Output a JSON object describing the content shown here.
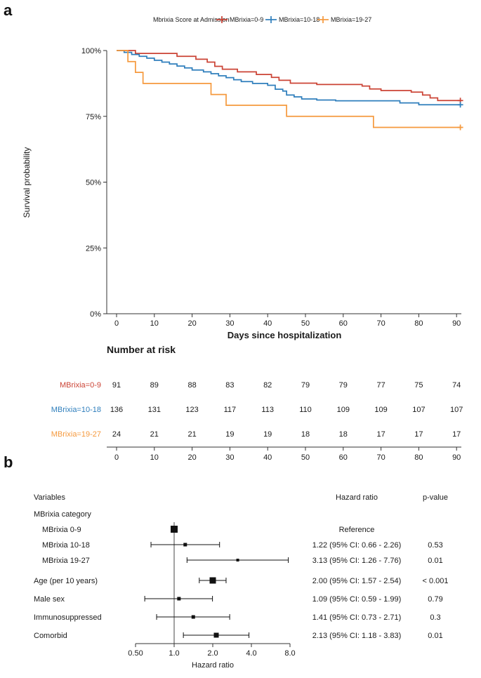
{
  "figure": {
    "panel_a_label": "a",
    "panel_b_label": "b"
  },
  "chart_data": [
    {
      "type": "line",
      "subtype": "kaplan-meier-step",
      "legend_title": "Mbrixia Score at Admission",
      "xlabel": "Days since hospitalization",
      "ylabel": "Survival probability",
      "xlim": [
        0,
        91
      ],
      "ylim": [
        0,
        100
      ],
      "xticks": [
        0,
        10,
        20,
        30,
        40,
        50,
        60,
        70,
        80,
        90
      ],
      "yticks": [
        100,
        75,
        50,
        25,
        0
      ],
      "ytick_labels": [
        "100%",
        "75%",
        "50%",
        "25%",
        "0%"
      ],
      "series": [
        {
          "name": "MBrixia=0-9",
          "color": "#cb4335",
          "steps": [
            [
              0,
              100
            ],
            [
              5,
              98.9
            ],
            [
              16,
              97.8
            ],
            [
              21,
              96.7
            ],
            [
              24,
              95.6
            ],
            [
              26,
              94.0
            ],
            [
              28,
              92.9
            ],
            [
              32,
              91.9
            ],
            [
              37,
              90.9
            ],
            [
              41,
              89.8
            ],
            [
              43,
              88.7
            ],
            [
              46,
              87.6
            ],
            [
              53,
              87.1
            ],
            [
              65,
              86.5
            ],
            [
              67,
              85.4
            ],
            [
              70,
              84.8
            ],
            [
              78,
              84.2
            ],
            [
              81,
              83.1
            ],
            [
              83,
              82.0
            ],
            [
              85,
              81.0
            ],
            [
              91,
              81.0
            ]
          ]
        },
        {
          "name": "MBrixia=10-18",
          "color": "#2e7ebc",
          "steps": [
            [
              0,
              100
            ],
            [
              2,
              99.3
            ],
            [
              4,
              98.5
            ],
            [
              6,
              97.8
            ],
            [
              8,
              97.1
            ],
            [
              10,
              96.3
            ],
            [
              12,
              95.6
            ],
            [
              14,
              94.9
            ],
            [
              16,
              94.1
            ],
            [
              18,
              93.4
            ],
            [
              20,
              92.6
            ],
            [
              23,
              91.9
            ],
            [
              25,
              91.2
            ],
            [
              27,
              90.4
            ],
            [
              29,
              89.7
            ],
            [
              31,
              88.9
            ],
            [
              33,
              88.2
            ],
            [
              36,
              87.5
            ],
            [
              40,
              86.8
            ],
            [
              42,
              85.3
            ],
            [
              44,
              84.6
            ],
            [
              45,
              83.1
            ],
            [
              47,
              82.4
            ],
            [
              49,
              81.6
            ],
            [
              53,
              81.2
            ],
            [
              58,
              80.9
            ],
            [
              75,
              80.1
            ],
            [
              80,
              79.4
            ],
            [
              91,
              79.4
            ]
          ]
        },
        {
          "name": "MBrixia=19-27",
          "color": "#f5993d",
          "steps": [
            [
              0,
              100
            ],
            [
              3,
              95.8
            ],
            [
              5,
              91.7
            ],
            [
              7,
              87.5
            ],
            [
              25,
              83.3
            ],
            [
              29,
              79.2
            ],
            [
              45,
              75.0
            ],
            [
              68,
              70.8
            ],
            [
              91,
              70.8
            ]
          ]
        }
      ],
      "risk_table": {
        "title": "Number at risk",
        "times": [
          0,
          10,
          20,
          30,
          40,
          50,
          60,
          70,
          80,
          90
        ],
        "rows": [
          {
            "name": "MBrixia=0-9",
            "color": "#cb4335",
            "counts": [
              91,
              89,
              88,
              83,
              82,
              79,
              79,
              77,
              75,
              74
            ]
          },
          {
            "name": "MBrixia=10-18",
            "color": "#2e7ebc",
            "counts": [
              136,
              131,
              123,
              117,
              113,
              110,
              109,
              109,
              107,
              107
            ]
          },
          {
            "name": "MBrixia=19-27",
            "color": "#f5993d",
            "counts": [
              24,
              21,
              21,
              19,
              19,
              18,
              18,
              17,
              17,
              17
            ]
          }
        ]
      }
    },
    {
      "type": "forest",
      "xlabel": "Hazard ratio",
      "xticks": [
        0.5,
        1.0,
        2.0,
        4.0,
        8.0
      ],
      "xtick_labels": [
        "0.50",
        "1.0",
        "2.0",
        "4.0",
        "8.0"
      ],
      "columns": {
        "variables": "Variables",
        "hazard_ratio": "Hazard ratio",
        "p_value": "p-value"
      },
      "rows": [
        {
          "label": "MBrixia category",
          "indent": 0,
          "hr": null,
          "ci": null,
          "hr_text": "",
          "p": "",
          "marker_size": 0
        },
        {
          "label": "MBrixia 0-9",
          "indent": 1,
          "hr": 1.0,
          "ci": null,
          "hr_text": "Reference",
          "p": "",
          "marker_size": 10
        },
        {
          "label": "MBrixia 10-18",
          "indent": 1,
          "hr": 1.22,
          "ci": [
            0.66,
            2.26
          ],
          "hr_text": "1.22 (95% CI: 0.66 - 2.26)",
          "p": "0.53",
          "marker_size": 5
        },
        {
          "label": "MBrixia 19-27",
          "indent": 1,
          "hr": 3.13,
          "ci": [
            1.26,
            7.76
          ],
          "hr_text": "3.13 (95% CI: 1.26 - 7.76)",
          "p": "0.01",
          "marker_size": 4
        },
        {
          "label": "Age (per 10 years)",
          "indent": 0,
          "hr": 2.0,
          "ci": [
            1.57,
            2.54
          ],
          "hr_text": "2.00 (95% CI: 1.57 - 2.54)",
          "p": "< 0.001",
          "marker_size": 9
        },
        {
          "label": "Male sex",
          "indent": 0,
          "hr": 1.09,
          "ci": [
            0.59,
            1.99
          ],
          "hr_text": "1.09 (95% CI: 0.59 - 1.99)",
          "p": "0.79",
          "marker_size": 5
        },
        {
          "label": "Immunosuppressed",
          "indent": 0,
          "hr": 1.41,
          "ci": [
            0.73,
            2.71
          ],
          "hr_text": "1.41 (95% CI: 0.73 - 2.71)",
          "p": "0.3",
          "marker_size": 5
        },
        {
          "label": "Comorbid",
          "indent": 0,
          "hr": 2.13,
          "ci": [
            1.18,
            3.83
          ],
          "hr_text": "2.13 (95% CI: 1.18 - 3.83)",
          "p": "0.01",
          "marker_size": 7
        }
      ]
    }
  ]
}
